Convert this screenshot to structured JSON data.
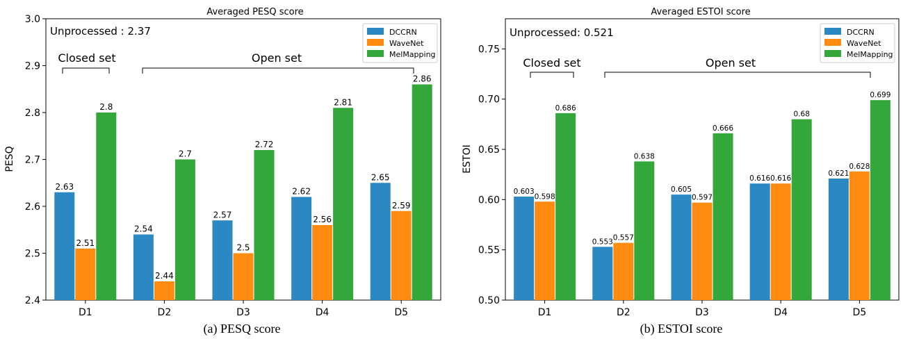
{
  "charts": [
    {
      "title": "Averaged PESQ score",
      "caption": "(a)  PESQ score",
      "annotation": "Unprocessed : 2.37",
      "ylabel": "PESQ",
      "ylim": [
        2.4,
        3.0
      ],
      "yticks": [
        "2.4",
        "2.5",
        "2.6",
        "2.7",
        "2.8",
        "2.9",
        "3.0"
      ],
      "closed_set_label": "Closed set",
      "open_set_label": "Open set"
    },
    {
      "title": "Averaged ESTOI score",
      "caption": "(b)  ESTOI score",
      "annotation": "Unprocessed: 0.521",
      "ylabel": "ESTOI",
      "ylim": [
        0.5,
        0.78
      ],
      "yticks": [
        "0.50",
        "0.55",
        "0.60",
        "0.65",
        "0.70",
        "0.75"
      ],
      "closed_set_label": "Closed set",
      "open_set_label": "Open set"
    }
  ],
  "chart_data": [
    {
      "type": "bar",
      "title": "Averaged PESQ score",
      "ylabel": "PESQ",
      "ylim": [
        2.4,
        3.0
      ],
      "categories": [
        "D1",
        "D2",
        "D3",
        "D4",
        "D5"
      ],
      "series": [
        {
          "name": "DCCRN",
          "color": "#2b88c3",
          "values": [
            2.63,
            2.54,
            2.57,
            2.62,
            2.65
          ],
          "labels": [
            "2.63",
            "2.54",
            "2.57",
            "2.62",
            "2.65"
          ]
        },
        {
          "name": "WaveNet",
          "color": "#ff8c10",
          "values": [
            2.51,
            2.44,
            2.5,
            2.56,
            2.59
          ],
          "labels": [
            "2.51",
            "2.44",
            "2.5",
            "2.56",
            "2.59"
          ]
        },
        {
          "name": "MelMapping",
          "color": "#33a73a",
          "values": [
            2.8,
            2.7,
            2.72,
            2.81,
            2.86
          ],
          "labels": [
            "2.8",
            "2.7",
            "2.72",
            "2.81",
            "2.86"
          ]
        }
      ],
      "legend": "top-right",
      "grid": false
    },
    {
      "type": "bar",
      "title": "Averaged ESTOI score",
      "ylabel": "ESTOI",
      "ylim": [
        0.5,
        0.78
      ],
      "categories": [
        "D1",
        "D2",
        "D3",
        "D4",
        "D5"
      ],
      "series": [
        {
          "name": "DCCRN",
          "color": "#2b88c3",
          "values": [
            0.603,
            0.553,
            0.605,
            0.616,
            0.621
          ],
          "labels": [
            "0.603",
            "0.553",
            "0.605",
            "0.616",
            "0.621"
          ]
        },
        {
          "name": "WaveNet",
          "color": "#ff8c10",
          "values": [
            0.598,
            0.557,
            0.597,
            0.616,
            0.628
          ],
          "labels": [
            "0.598",
            "0.557",
            "0.597",
            "0.616",
            "0.628"
          ]
        },
        {
          "name": "MelMapping",
          "color": "#33a73a",
          "values": [
            0.686,
            0.638,
            0.666,
            0.68,
            0.699
          ],
          "labels": [
            "0.686",
            "0.638",
            "0.666",
            "0.68",
            "0.699"
          ]
        }
      ],
      "legend": "top-right",
      "grid": false
    }
  ]
}
